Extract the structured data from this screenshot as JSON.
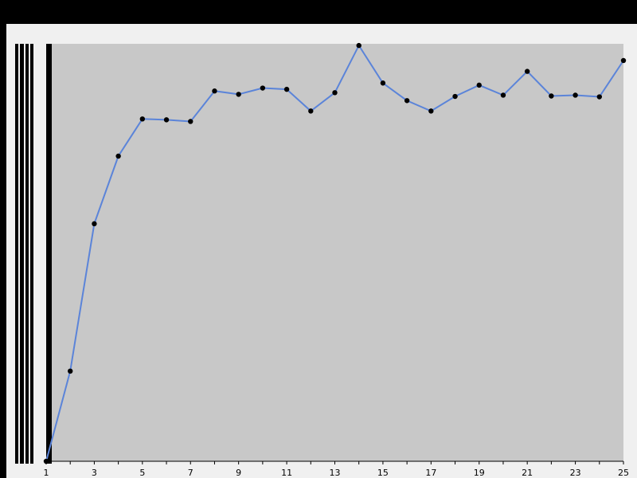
{
  "chart_data": {
    "type": "line",
    "title": "",
    "xlabel": "",
    "ylabel": "",
    "x": [
      1,
      2,
      3,
      4,
      5,
      6,
      7,
      8,
      9,
      10,
      11,
      12,
      13,
      14,
      15,
      16,
      17,
      18,
      19,
      20,
      21,
      22,
      23,
      24,
      25
    ],
    "x_tick_labels": [
      "1",
      "3",
      "5",
      "7",
      "9",
      "11",
      "13",
      "15",
      "17",
      "19",
      "21",
      "23",
      "25"
    ],
    "series": [
      {
        "name": "",
        "values": [
          0,
          21.6,
          56.9,
          73.1,
          82.0,
          81.8,
          81.4,
          88.7,
          87.9,
          89.4,
          89.1,
          83.9,
          88.3,
          99.6,
          90.6,
          86.4,
          83.9,
          87.4,
          90.1,
          87.7,
          93.4,
          87.5,
          87.7,
          87.3,
          96.0
        ]
      }
    ],
    "xlim": [
      1,
      25
    ],
    "ylim": [
      0,
      100
    ],
    "grid": false,
    "legend": "none",
    "colors": {
      "plot_background": "#c8c8c8",
      "frame_background": "#f0f0f0",
      "line": "#5b84d9",
      "marker": "#000000",
      "axis": "#000000"
    }
  }
}
